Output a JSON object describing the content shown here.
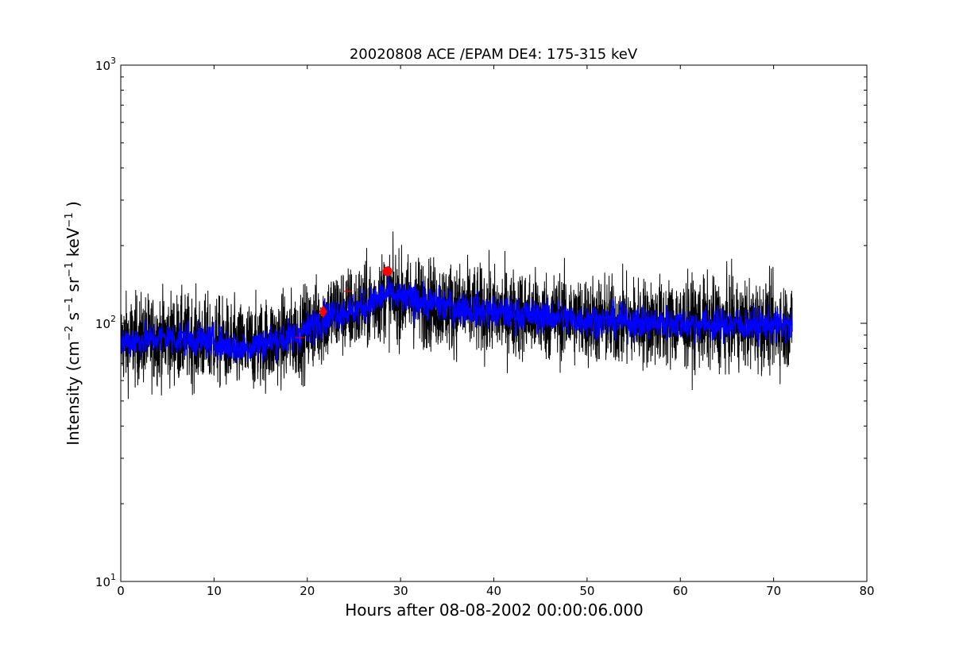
{
  "chart_data": {
    "type": "line",
    "title": "20020808 ACE /EPAM DE4: 175-315 keV",
    "xlabel": "Hours after 08-08-2002 00:00:06.000",
    "ylabel": {
      "base": "Intensity (cm",
      "parts": [
        {
          "text": "Intensity (cm",
          "sup": false
        },
        {
          "text": "−2",
          "sup": true
        },
        {
          "text": " s",
          "sup": false
        },
        {
          "text": "−1",
          "sup": true
        },
        {
          "text": " sr",
          "sup": false
        },
        {
          "text": "−1",
          "sup": true
        },
        {
          "text": " keV",
          "sup": false
        },
        {
          "text": "−1",
          "sup": true
        },
        {
          "text": " )",
          "sup": false
        }
      ]
    },
    "xlim": [
      0,
      80
    ],
    "ylim": [
      10,
      1000
    ],
    "yscale": "log",
    "grid": false,
    "xticks": [
      0,
      10,
      20,
      30,
      40,
      50,
      60,
      70,
      80
    ],
    "yticks": [
      {
        "value": 10,
        "base": "10",
        "exp": "1"
      },
      {
        "value": 100,
        "base": "10",
        "exp": "2"
      },
      {
        "value": 1000,
        "base": "10",
        "exp": "3"
      }
    ],
    "trend": {
      "x": [
        0,
        5,
        10,
        13,
        16,
        19,
        21,
        23,
        25,
        27,
        28.5,
        30,
        33,
        36,
        40,
        45,
        50,
        55,
        60,
        65,
        72
      ],
      "y": [
        85,
        88,
        85,
        80,
        85,
        90,
        100,
        110,
        112,
        120,
        130,
        125,
        120,
        115,
        110,
        107,
        103,
        101,
        100,
        99,
        98
      ]
    },
    "series": [
      {
        "color": "#000000",
        "x_range": [
          0,
          72
        ],
        "noise_log10": 0.17,
        "points": 3600
      },
      {
        "color": "#0000ff",
        "x_range": [
          0,
          72
        ],
        "noise_log10": 0.065,
        "points": 2200
      }
    ],
    "markers": [
      {
        "shape": "plus",
        "x": 19.2,
        "y": 88,
        "color": "#ff0000"
      },
      {
        "shape": "diamond",
        "x": 21.7,
        "y": 111,
        "color": "#ff0000"
      },
      {
        "shape": "plus",
        "x": 24.3,
        "y": 133,
        "color": "#ff0000"
      },
      {
        "shape": "circle",
        "x": 28.6,
        "y": 159,
        "color": "#ff0000"
      }
    ]
  }
}
